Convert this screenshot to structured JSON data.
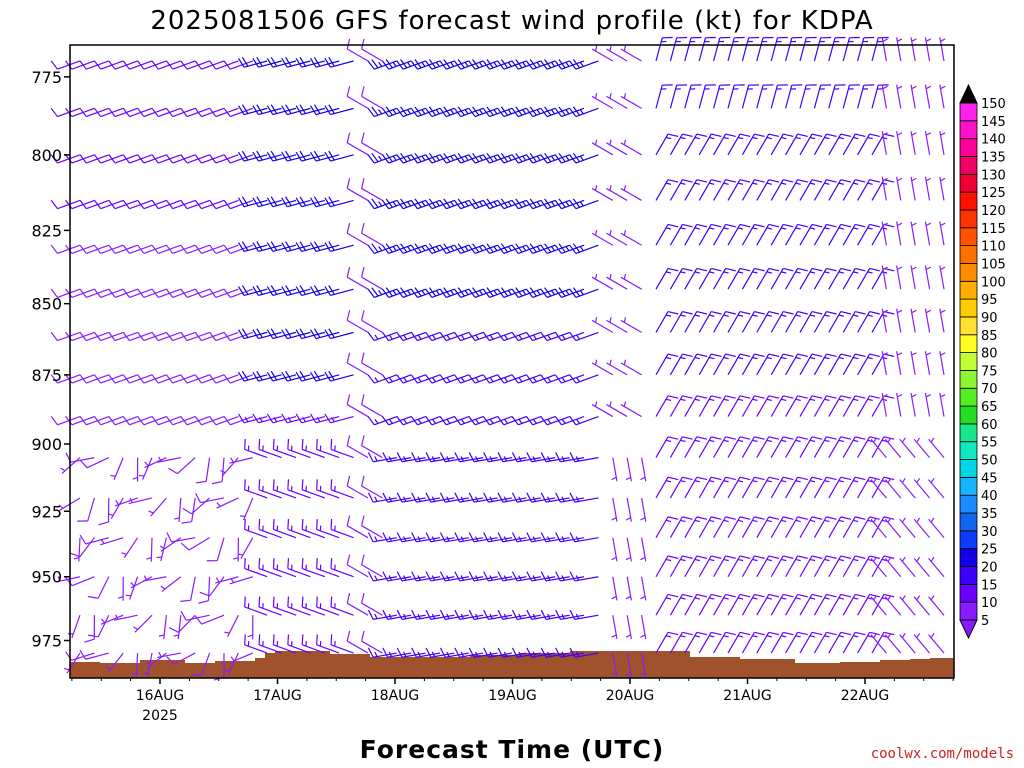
{
  "chart_data": {
    "type": "wind-barb-profile",
    "title": "2025081506 GFS forecast wind profile (kt) for KDPA",
    "xlabel": "Forecast Time (UTC)",
    "ylabel": "",
    "credit": "coolwx.com/models",
    "y_ticks": [
      775,
      800,
      825,
      850,
      875,
      900,
      925,
      950,
      975
    ],
    "ylim": [
      765,
      990
    ],
    "y_scale": "log",
    "x_ticks": [
      {
        "label": "16AUG",
        "sub": "2025",
        "day": 1
      },
      {
        "label": "17AUG",
        "sub": "",
        "day": 2
      },
      {
        "label": "18AUG",
        "sub": "",
        "day": 3
      },
      {
        "label": "19AUG",
        "sub": "",
        "day": 4
      },
      {
        "label": "20AUG",
        "sub": "",
        "day": 5
      },
      {
        "label": "21AUG",
        "sub": "",
        "day": 6
      },
      {
        "label": "22AUG",
        "sub": "",
        "day": 7
      }
    ],
    "x_range_days": [
      0.0,
      7.5
    ],
    "levels_mb": [
      770,
      785,
      800,
      815,
      830,
      845,
      860,
      875,
      890,
      905,
      920,
      935,
      950,
      965,
      980
    ],
    "surface_pressure_mb_approx": 985,
    "colorbar_levels_kt": [
      5,
      10,
      15,
      20,
      25,
      30,
      35,
      40,
      45,
      50,
      55,
      60,
      65,
      70,
      75,
      80,
      85,
      90,
      95,
      100,
      105,
      110,
      115,
      120,
      125,
      130,
      135,
      140,
      145,
      150
    ],
    "colorbar_colors": [
      "#8a1aff",
      "#6a00ff",
      "#3c00ff",
      "#1400e8",
      "#0b3cff",
      "#1166ee",
      "#1a8cff",
      "#19b4ff",
      "#00d7e6",
      "#11e8c0",
      "#18e68a",
      "#22dd22",
      "#55ee22",
      "#8ef533",
      "#bfff33",
      "#ffff22",
      "#ffe033",
      "#ffcc00",
      "#ffad00",
      "#ff8c00",
      "#ff7000",
      "#ff5300",
      "#ff3300",
      "#ff1100",
      "#ee0033",
      "#ee0066",
      "#ff0099",
      "#ff11cc",
      "#ff22ee",
      "#ff44ff"
    ],
    "terrain_color": "#a0522d",
    "wind_regimes": [
      {
        "period": "15AUG 06Z - 16AUG 18Z",
        "direction": "light and variable, mostly southwest to west",
        "speed_kt_range": [
          5,
          15
        ]
      },
      {
        "period": "16AUG 18Z - 17AUG 18Z",
        "direction": "west-southwest aloft, west-northwest near surface",
        "speed_kt_range": [
          15,
          25
        ]
      },
      {
        "period": "18AUG - 19AUG",
        "direction": "west-southwest",
        "speed_kt_range": [
          10,
          25
        ]
      },
      {
        "period": "19AUG 18Z - 20AUG 00Z",
        "direction": "light and variable",
        "speed_kt_range": [
          5,
          10
        ]
      },
      {
        "period": "20AUG 06Z - 22AUG 06Z",
        "direction": "north-northeast to northeast",
        "speed_kt_range": [
          10,
          20
        ]
      },
      {
        "period": "22AUG 12Z - end",
        "direction": "light, northwest to north",
        "speed_kt_range": [
          5,
          10
        ]
      }
    ]
  }
}
